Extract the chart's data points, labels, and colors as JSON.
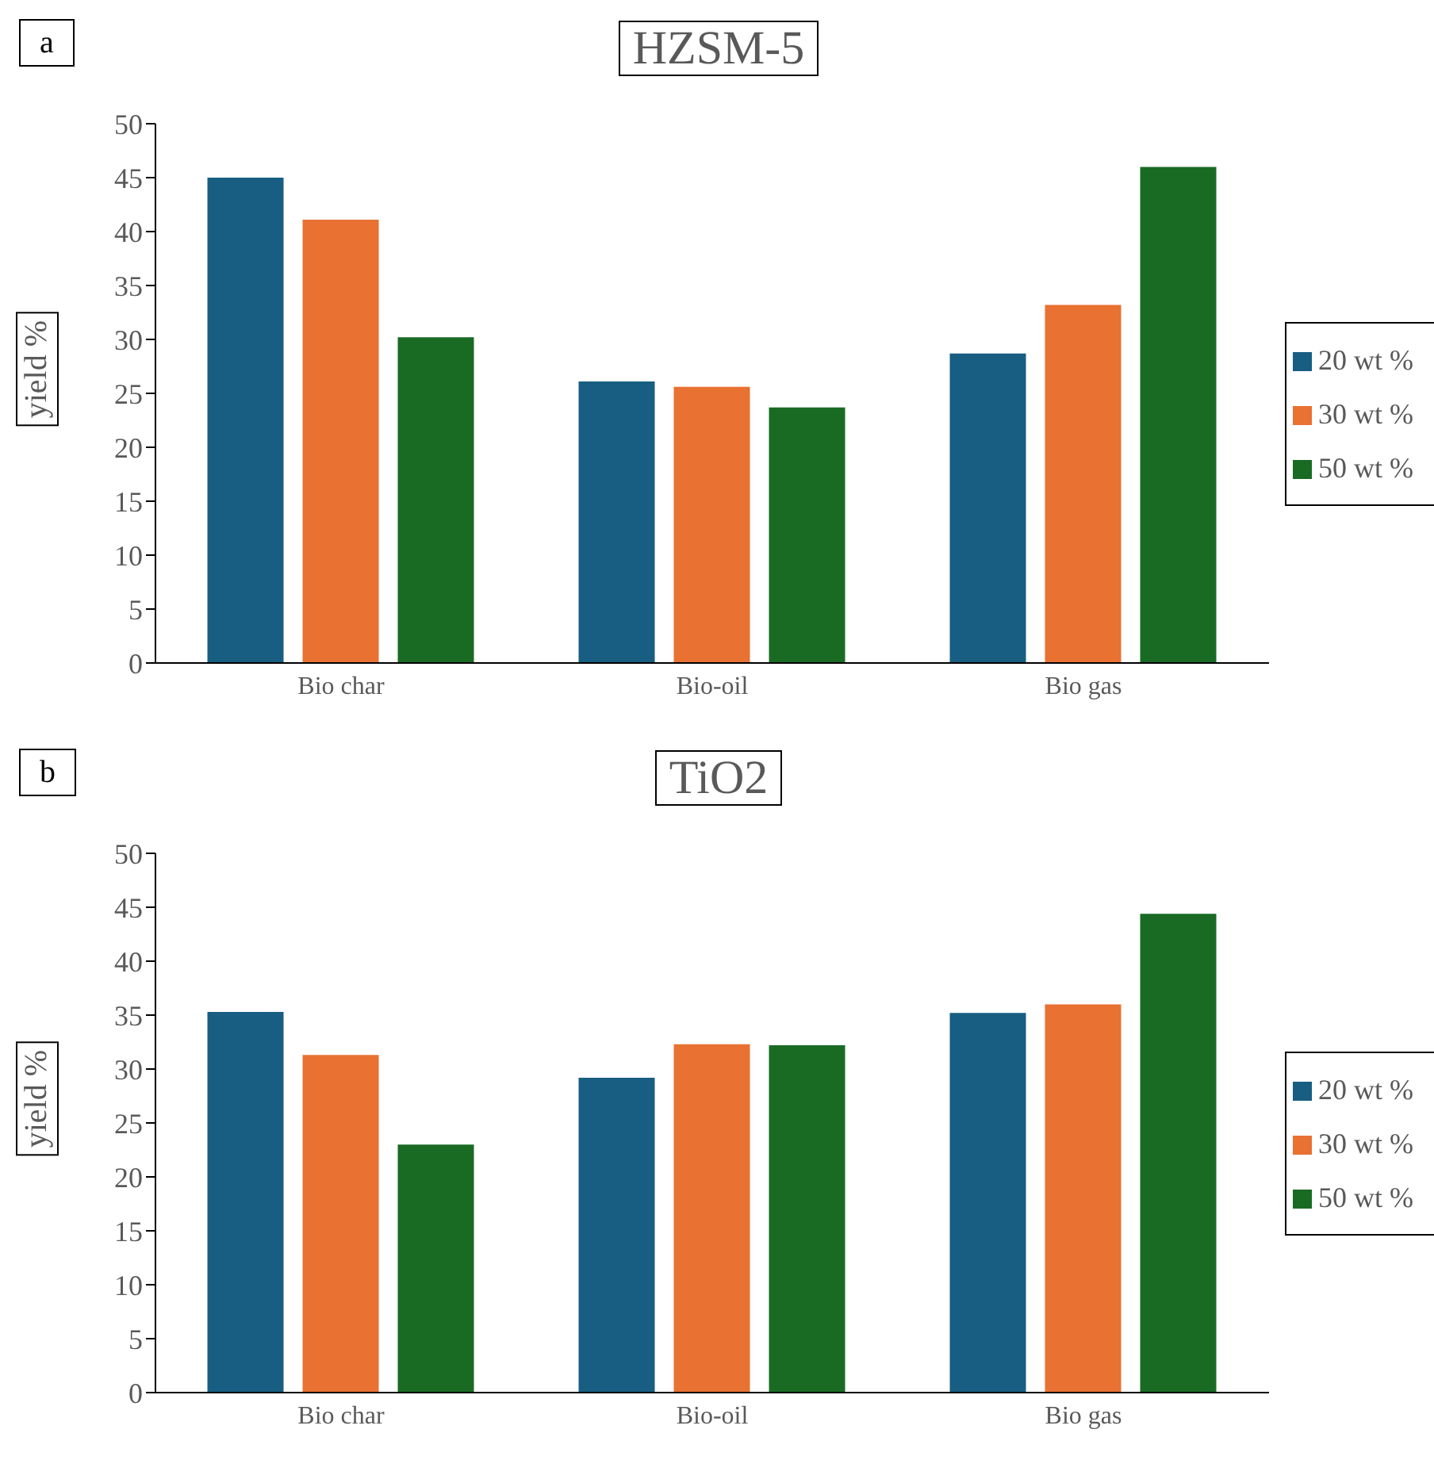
{
  "chart_data": [
    {
      "type": "bar",
      "title": "HZSM-5",
      "ylabel": "yield %",
      "annotations": [
        "a"
      ],
      "categories": [
        "Bio char",
        "Bio-oil",
        "Bio gas"
      ],
      "series": [
        {
          "name": "20 wt %",
          "color": "#175e82",
          "values": [
            45.0,
            26.1,
            28.7
          ]
        },
        {
          "name": "30 wt %",
          "color": "#e97132",
          "values": [
            41.1,
            25.6,
            33.2
          ]
        },
        {
          "name": "50 wt %",
          "color": "#196b24",
          "values": [
            30.2,
            23.7,
            46.0
          ]
        }
      ],
      "ylim": [
        0,
        50
      ],
      "yticks": [
        0,
        5,
        10,
        15,
        20,
        25,
        30,
        35,
        40,
        45,
        50
      ],
      "grid": false,
      "legend": "right"
    },
    {
      "type": "bar",
      "title": "TiO2",
      "ylabel": "yield %",
      "annotations": [
        "b"
      ],
      "categories": [
        "Bio char",
        "Bio-oil",
        "Bio gas"
      ],
      "series": [
        {
          "name": "20 wt %",
          "color": "#175e82",
          "values": [
            35.3,
            29.2,
            35.2
          ]
        },
        {
          "name": "30 wt %",
          "color": "#e97132",
          "values": [
            31.3,
            32.3,
            36.0
          ]
        },
        {
          "name": "50 wt %",
          "color": "#196b24",
          "values": [
            23.0,
            32.2,
            44.4
          ]
        }
      ],
      "ylim": [
        0,
        50
      ],
      "yticks": [
        0,
        5,
        10,
        15,
        20,
        25,
        30,
        35,
        40,
        45,
        50
      ],
      "grid": false,
      "legend": "right"
    }
  ]
}
